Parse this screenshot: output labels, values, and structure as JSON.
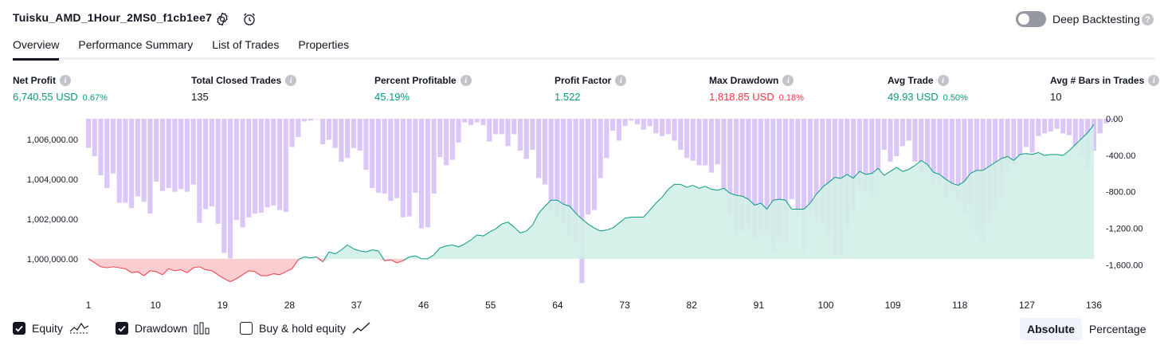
{
  "header": {
    "title": "Tuisku_AMD_1Hour_2MS0_f1cb1ee7",
    "deep_backtesting_label": "Deep Backtesting",
    "deep_backtesting_on": false
  },
  "tabs": [
    {
      "label": "Overview",
      "active": true
    },
    {
      "label": "Performance Summary",
      "active": false
    },
    {
      "label": "List of Trades",
      "active": false
    },
    {
      "label": "Properties",
      "active": false
    }
  ],
  "metrics": [
    {
      "label": "Net Profit",
      "value": "6,740.55 USD",
      "pct": "0.67%",
      "tone": "green"
    },
    {
      "label": "Total Closed Trades",
      "value": "135",
      "pct": "",
      "tone": "dark"
    },
    {
      "label": "Percent Profitable",
      "value": "45.19%",
      "pct": "",
      "tone": "green"
    },
    {
      "label": "Profit Factor",
      "value": "1.522",
      "pct": "",
      "tone": "green"
    },
    {
      "label": "Max Drawdown",
      "value": "1,818.85 USD",
      "pct": "0.18%",
      "tone": "red"
    },
    {
      "label": "Avg Trade",
      "value": "49.93 USD",
      "pct": "0.50%",
      "tone": "green"
    },
    {
      "label": "Avg # Bars in Trades",
      "value": "10",
      "pct": "",
      "tone": "dark"
    }
  ],
  "colors": {
    "equity_line_up": "#089981",
    "equity_line_down": "#f23645",
    "equity_fill_up": "#d2efe8",
    "equity_fill_down": "#f9c9cc",
    "drawdown_bar": "#d4bcf7",
    "accent": "#131722"
  },
  "chart_data": {
    "type": "area",
    "x_ticks": [
      "1",
      "10",
      "19",
      "28",
      "37",
      "46",
      "55",
      "64",
      "73",
      "82",
      "91",
      "100",
      "109",
      "118",
      "127",
      "136"
    ],
    "left_axis": {
      "ticks": [
        "1,006,000.00",
        "1,004,000.00",
        "1,002,000.00",
        "1,000,000.00"
      ],
      "values": [
        1006000,
        1004000,
        1002000,
        1000000
      ],
      "ylim": [
        998550,
        1007050
      ]
    },
    "right_axis": {
      "ticks": [
        "0.00",
        "-400.00",
        "-800.00",
        "-1,200.00",
        "-1,600.00"
      ],
      "values": [
        0,
        -400,
        -800,
        -1200,
        -1600
      ],
      "ylim": [
        -1850,
        0
      ]
    },
    "baseline": 1000000,
    "series": [
      {
        "name": "Equity",
        "type": "line",
        "values": [
          1000000,
          999800,
          999600,
          999550,
          999600,
          999550,
          999500,
          999300,
          999350,
          999150,
          999400,
          999350,
          999200,
          999500,
          999400,
          999450,
          999300,
          999550,
          999600,
          999450,
          999400,
          999200,
          999000,
          998850,
          999000,
          999200,
          999400,
          999350,
          999150,
          999150,
          999250,
          999200,
          999350,
          999500,
          999950,
          1000100,
          1000050,
          1000100,
          999850,
          1000350,
          1000250,
          1000450,
          1000700,
          1000500,
          1000400,
          1000350,
          1000450,
          1000400,
          999900,
          999950,
          999800,
          999900,
          1000100,
          1000150,
          1000000,
          1000000,
          1000200,
          1000550,
          1000650,
          1000700,
          1000600,
          1000750,
          1000950,
          1001200,
          1001150,
          1001350,
          1001500,
          1001750,
          1001850,
          1001600,
          1001300,
          1001400,
          1001700,
          1002300,
          1002650,
          1002950,
          1002950,
          1002750,
          1002650,
          1002300,
          1002000,
          1001750,
          1001550,
          1001400,
          1001450,
          1001550,
          1001800,
          1002050,
          1002100,
          1002100,
          1002100,
          1002450,
          1002800,
          1003100,
          1003500,
          1003750,
          1003750,
          1003600,
          1003700,
          1003550,
          1003650,
          1003500,
          1003450,
          1003550,
          1003300,
          1003200,
          1003150,
          1003000,
          1002700,
          1002800,
          1002500,
          1002950,
          1003000,
          1002950,
          1002500,
          1002500,
          1002500,
          1002800,
          1003250,
          1003600,
          1003850,
          1004100,
          1004050,
          1004250,
          1004050,
          1004400,
          1004250,
          1004300,
          1004550,
          1004200,
          1004400,
          1004600,
          1004400,
          1004500,
          1004700,
          1004950,
          1004750,
          1004350,
          1004250,
          1004000,
          1003800,
          1003700,
          1003900,
          1004300,
          1004450,
          1004450,
          1004650,
          1004850,
          1005050,
          1005150,
          1004950,
          1005250,
          1005300,
          1005250,
          1005350,
          1005200,
          1005250,
          1005250,
          1005200,
          1005450,
          1005750,
          1006050,
          1006350,
          1006750
        ]
      },
      {
        "name": "Drawdown",
        "type": "bar",
        "values": [
          -320,
          -410,
          -620,
          -760,
          -600,
          -920,
          -920,
          -980,
          -850,
          -910,
          -1040,
          -690,
          -790,
          -760,
          -800,
          -770,
          -800,
          -720,
          -1140,
          -990,
          -960,
          -1150,
          -1470,
          -1530,
          -1110,
          -1190,
          -1080,
          -1040,
          -1030,
          -970,
          -950,
          -1000,
          -1020,
          -310,
          -200,
          -30,
          -20,
          0,
          -280,
          -230,
          -320,
          -470,
          -430,
          -320,
          -350,
          -560,
          -760,
          -810,
          -820,
          -900,
          -870,
          -1080,
          -1070,
          -810,
          -1200,
          -1190,
          -820,
          -420,
          -510,
          -450,
          -260,
          -40,
          -70,
          -40,
          -70,
          -250,
          -170,
          -170,
          -300,
          -170,
          -350,
          -440,
          -340,
          -650,
          -720,
          -1010,
          -1080,
          -1150,
          -1280,
          -1360,
          -1800,
          -1050,
          -1000,
          -650,
          -430,
          -130,
          -240,
          -80,
          -20,
          -60,
          -120,
          -80,
          -160,
          -190,
          -170,
          -240,
          -340,
          -430,
          -460,
          -510,
          -510,
          -590,
          -500,
          -810,
          -1050,
          -1280,
          -1240,
          -1200,
          -1330,
          -1270,
          -1270,
          -1460,
          -1330,
          -1370,
          -880,
          -1020,
          -1460,
          -1050,
          -1110,
          -1150,
          -1270,
          -1490,
          -1510,
          -1190,
          -1000,
          -780,
          -800,
          -850,
          -590,
          -340,
          -470,
          -410,
          -300,
          -240,
          -470,
          -600,
          -590,
          -720,
          -720,
          -880,
          -790,
          -910,
          -1040,
          -940,
          -1230,
          -1350,
          -1160,
          -1000,
          -900,
          -610,
          -510,
          -430,
          -310,
          -370,
          -190,
          -160,
          -140,
          -110,
          -160,
          -180,
          -330,
          -420,
          -550,
          -350,
          -160,
          -50,
          -20
        ]
      }
    ]
  },
  "legend": {
    "items": [
      {
        "label": "Equity",
        "checked": true,
        "icon": "equity-line-icon"
      },
      {
        "label": "Drawdown",
        "checked": true,
        "icon": "drawdown-bars-icon"
      },
      {
        "label": "Buy & hold equity",
        "checked": false,
        "icon": "buy-hold-line-icon"
      }
    ]
  },
  "view_mode": {
    "options": [
      "Absolute",
      "Percentage"
    ],
    "selected": "Absolute"
  }
}
